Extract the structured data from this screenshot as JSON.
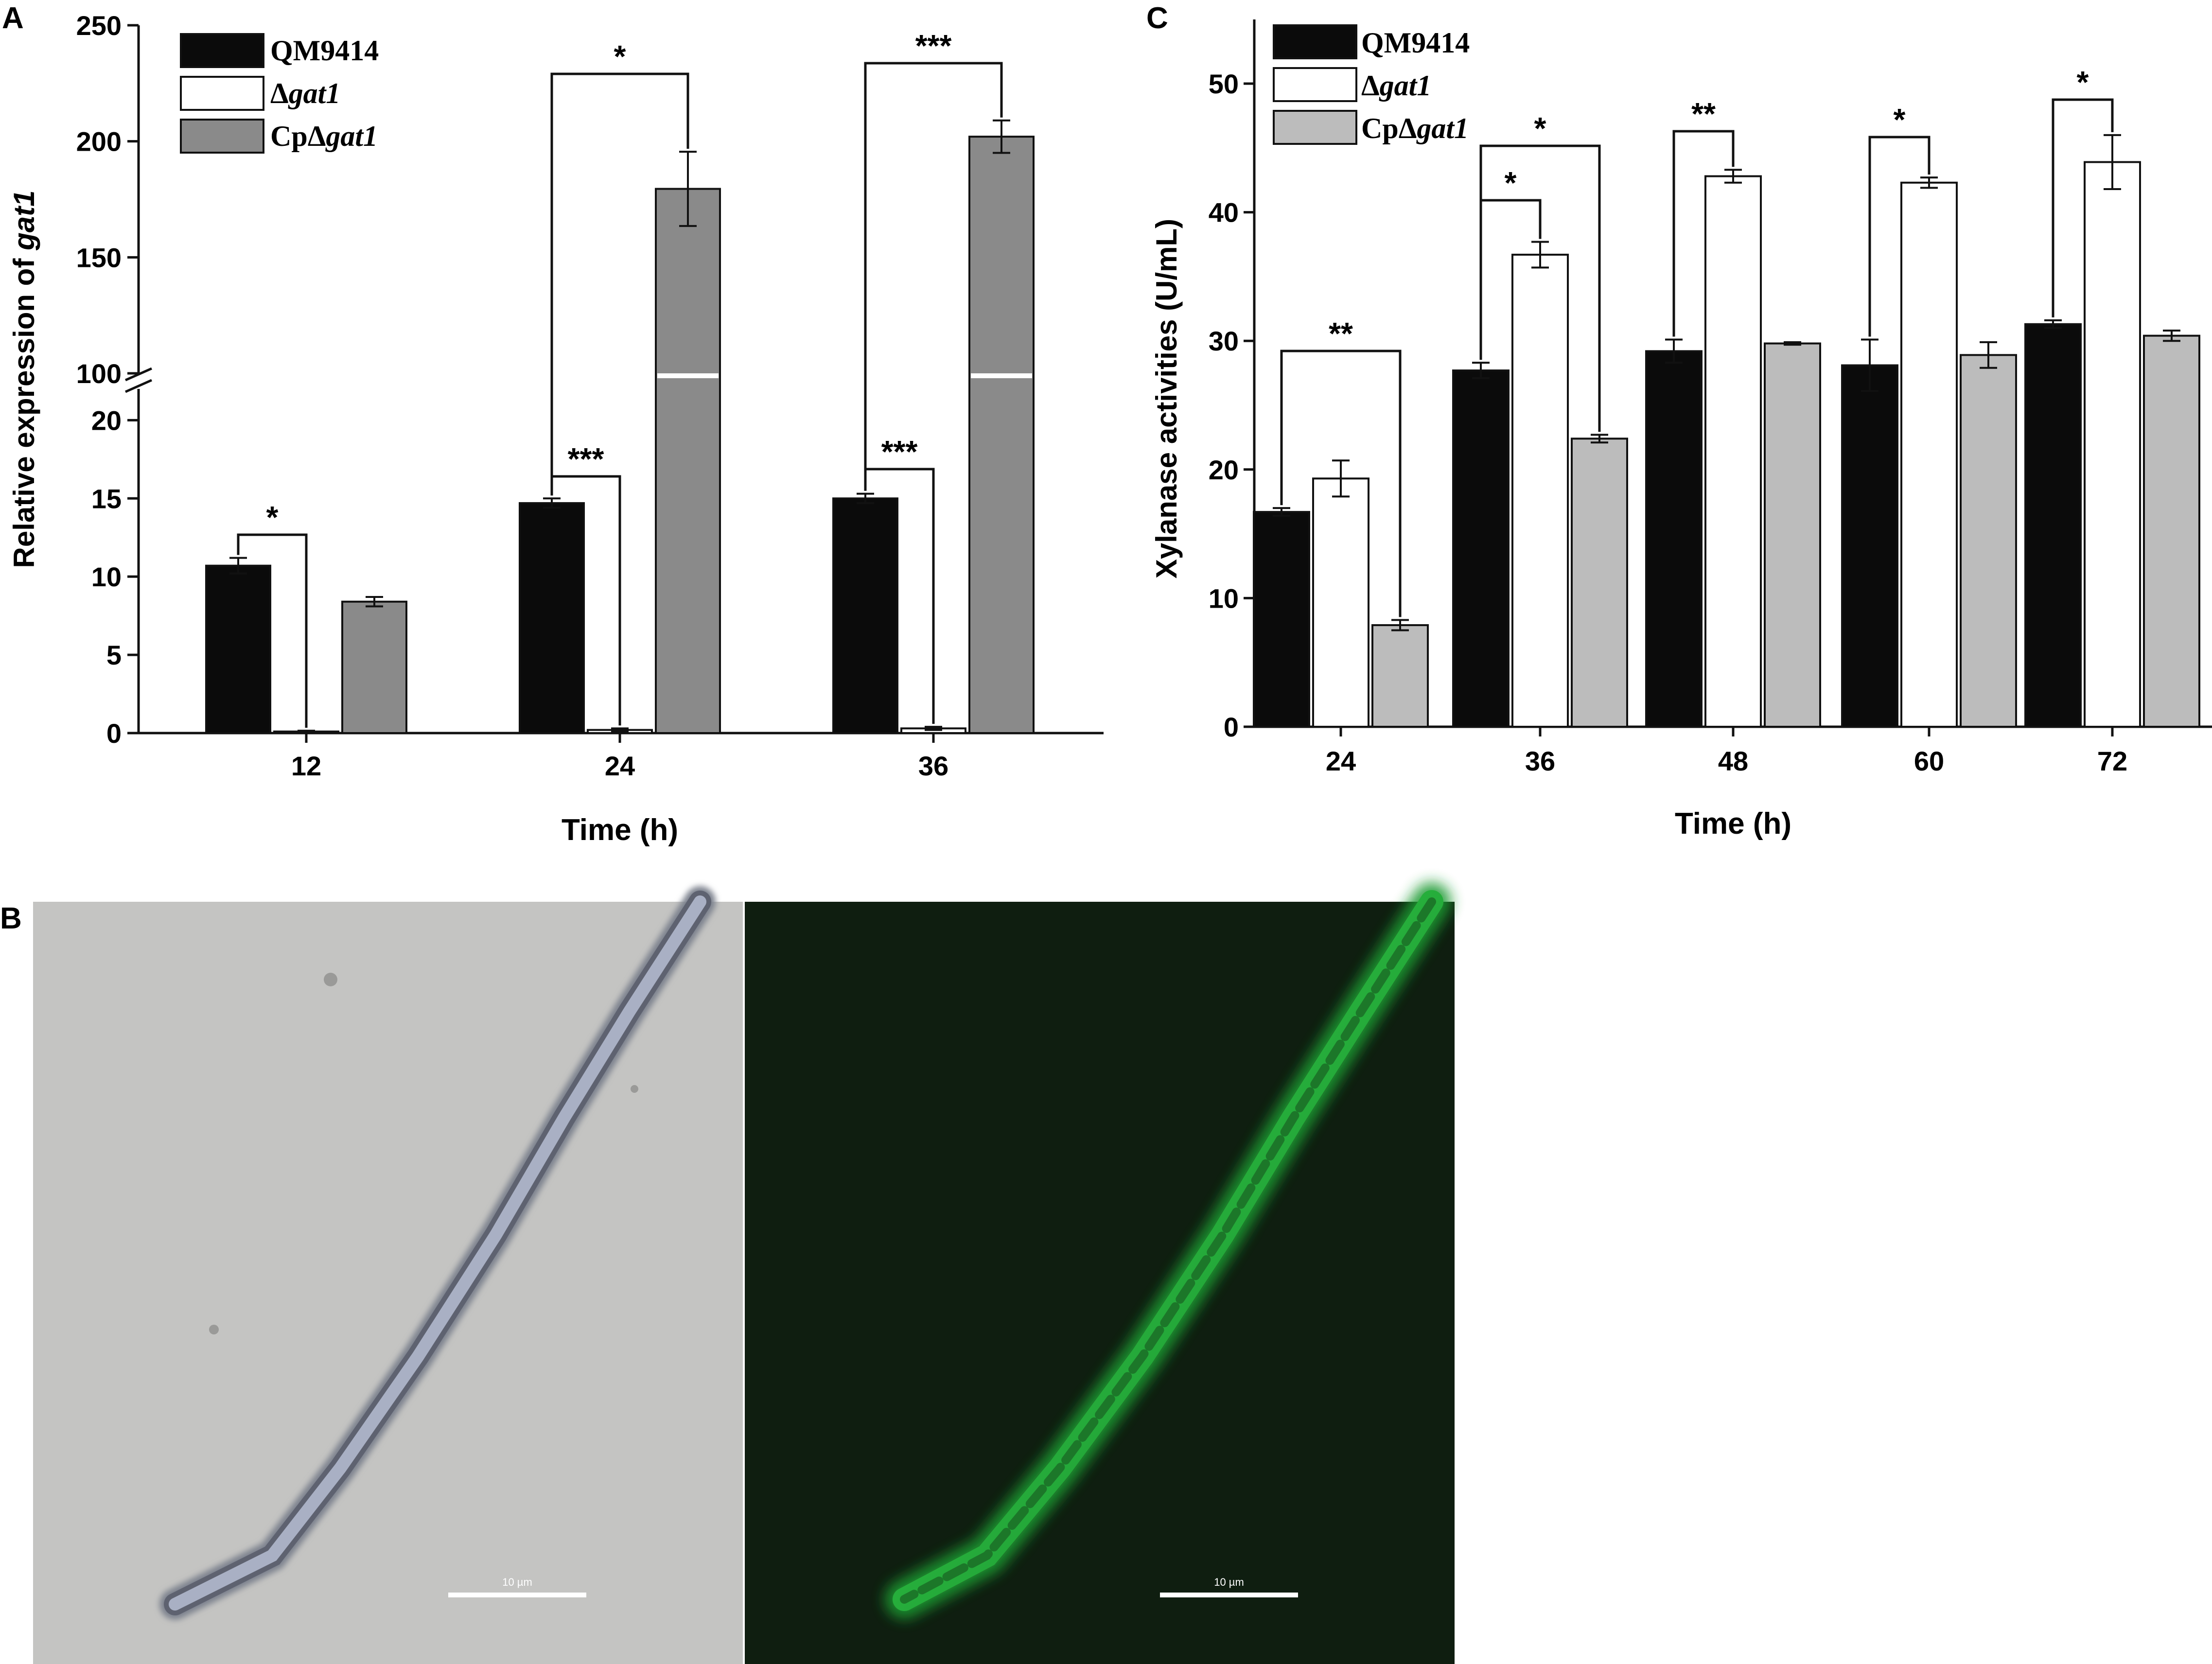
{
  "colors": {
    "black": "#0b0b0b",
    "white": "#ffffff",
    "gray_a": "#8a8a8a",
    "gray_c": "#bcbcbc",
    "axis": "#111111"
  },
  "panel_a": {
    "letter": "A",
    "legend": [
      {
        "prefix": "",
        "italic": "",
        "text": "QM9414"
      },
      {
        "prefix": "Δ",
        "italic": "gat1",
        "text": ""
      },
      {
        "prefix": "CpΔ",
        "italic": "gat1",
        "text": ""
      }
    ],
    "ylabel_prefix": "Relative expression of ",
    "ylabel_italic": "gat1",
    "xlabel": "Time (h)",
    "yticks_lower": [
      "0",
      "5",
      "10",
      "15",
      "20"
    ],
    "yticks_upper": [
      "100",
      "150",
      "200",
      "250"
    ],
    "sig": [
      "*",
      "*",
      "***",
      "***",
      "***"
    ]
  },
  "panel_c": {
    "letter": "C",
    "legend": [
      {
        "prefix": "",
        "italic": "",
        "text": "QM9414"
      },
      {
        "prefix": "Δ",
        "italic": "gat1",
        "text": ""
      },
      {
        "prefix": "CpΔ",
        "italic": "gat1",
        "text": ""
      }
    ],
    "ylabel": "Xylanase activities (U/mL)",
    "xlabel": "Time (h)",
    "yticks": [
      "0",
      "10",
      "20",
      "30",
      "40",
      "50"
    ],
    "sig": [
      "**",
      "*",
      "*",
      "**",
      "*",
      "*"
    ]
  },
  "panel_b": {
    "letter": "B",
    "scale_left": "10 µm",
    "scale_right": "10 µm"
  },
  "chart_data": [
    {
      "type": "bar",
      "panel": "A",
      "categories": [
        "12",
        "24",
        "36"
      ],
      "xlabel": "Time (h)",
      "ylabel": "Relative expression of gat1",
      "broken_axis": {
        "lower": [
          0,
          22
        ],
        "upper": [
          100,
          250
        ]
      },
      "series": [
        {
          "name": "QM9414",
          "values": [
            10.7,
            14.7,
            15.0
          ],
          "errors": [
            0.5,
            0.3,
            0.3
          ]
        },
        {
          "name": "Δgat1",
          "values": [
            0.1,
            0.2,
            0.3
          ],
          "errors": [
            0.05,
            0.1,
            0.1
          ]
        },
        {
          "name": "CpΔgat1",
          "values": [
            8.4,
            179.5,
            202.0
          ],
          "errors": [
            0.3,
            16.0,
            7.0
          ]
        }
      ],
      "significance": [
        {
          "time": "12",
          "between": [
            "QM9414",
            "Δgat1"
          ],
          "label": "*"
        },
        {
          "time": "24",
          "between": [
            "QM9414",
            "Δgat1"
          ],
          "label": "***"
        },
        {
          "time": "24",
          "between": [
            "QM9414",
            "CpΔgat1"
          ],
          "label": "*"
        },
        {
          "time": "36",
          "between": [
            "QM9414",
            "Δgat1"
          ],
          "label": "***"
        },
        {
          "time": "36",
          "between": [
            "QM9414",
            "CpΔgat1"
          ],
          "label": "***"
        }
      ]
    },
    {
      "type": "bar",
      "panel": "C",
      "categories": [
        "24",
        "36",
        "48",
        "60",
        "72"
      ],
      "xlabel": "Time (h)",
      "ylabel": "Xylanase activities (U/mL)",
      "ylim": [
        0,
        55
      ],
      "series": [
        {
          "name": "QM9414",
          "values": [
            16.7,
            27.7,
            29.2,
            28.1,
            31.3
          ],
          "errors": [
            0.3,
            0.6,
            0.9,
            2.0,
            0.3
          ]
        },
        {
          "name": "Δgat1",
          "values": [
            19.3,
            36.7,
            42.8,
            42.3,
            43.9
          ],
          "errors": [
            1.4,
            1.0,
            0.5,
            0.4,
            2.1
          ]
        },
        {
          "name": "CpΔgat1",
          "values": [
            7.9,
            22.4,
            29.8,
            28.9,
            30.4
          ],
          "errors": [
            0.4,
            0.3,
            0.1,
            1.0,
            0.4
          ]
        }
      ],
      "significance": [
        {
          "time": "24",
          "between": [
            "QM9414",
            "CpΔgat1"
          ],
          "label": "**"
        },
        {
          "time": "36",
          "between": [
            "QM9414",
            "Δgat1"
          ],
          "label": "*"
        },
        {
          "time": "36",
          "between": [
            "QM9414",
            "CpΔgat1"
          ],
          "label": "*"
        },
        {
          "time": "48",
          "between": [
            "QM9414",
            "Δgat1"
          ],
          "label": "**"
        },
        {
          "time": "60",
          "between": [
            "QM9414",
            "Δgat1"
          ],
          "label": "*"
        },
        {
          "time": "72",
          "between": [
            "QM9414",
            "Δgat1"
          ],
          "label": "*"
        }
      ]
    }
  ]
}
